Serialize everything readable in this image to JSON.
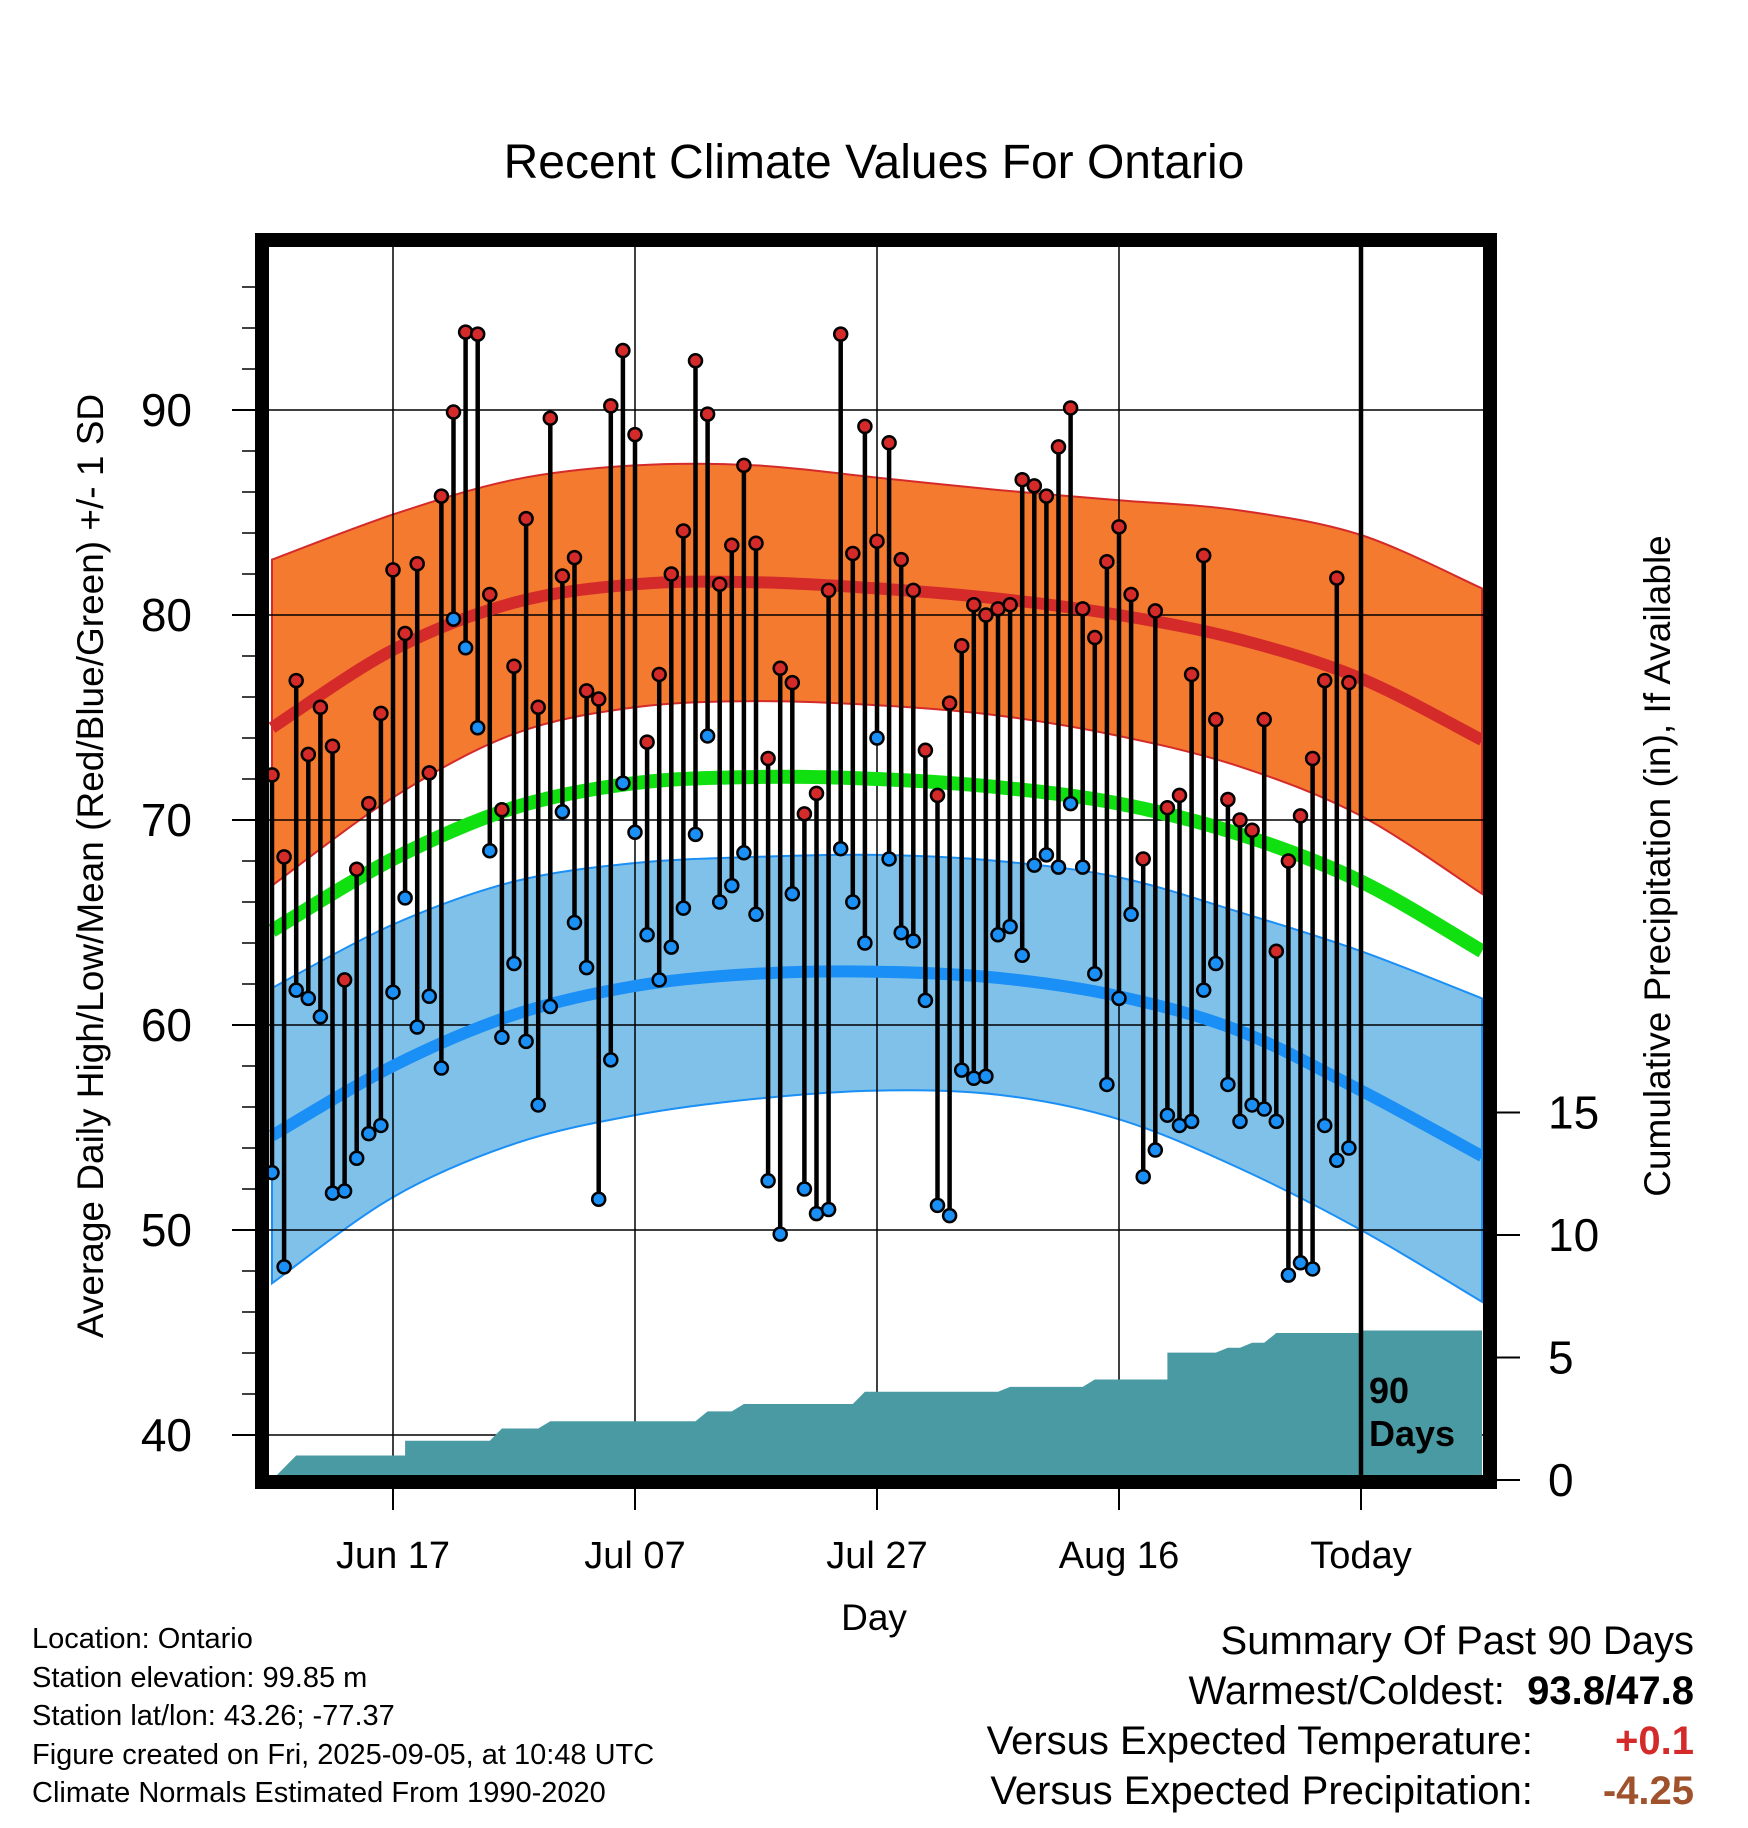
{
  "chart_data": {
    "type": "line",
    "title": "Recent Climate Values For Ontario",
    "xlabel": "Day",
    "ylabel": "Average Daily High/Low/Mean (Red/Blue/Green) +/- 1 SD",
    "y2label": "Cumulative Precipitation (in), If Available",
    "ylim": [
      38,
      98
    ],
    "y2lim": [
      0,
      20
    ],
    "y_ticks": [
      40,
      50,
      60,
      70,
      80,
      90
    ],
    "y2_ticks": [
      0,
      5,
      10,
      15
    ],
    "x_day_range": [
      0,
      90
    ],
    "x_ticks": [
      {
        "day": 10,
        "label": "Jun 17"
      },
      {
        "day": 30,
        "label": "Jul 07"
      },
      {
        "day": 50,
        "label": "Jul 27"
      },
      {
        "day": 70,
        "label": "Aug 16"
      },
      {
        "day": 90,
        "label": "Today"
      }
    ],
    "today_day": 90,
    "window_label": [
      "90",
      "Days"
    ],
    "grid": true,
    "colors": {
      "high": "#d42a2a",
      "high_band": "#f47a30",
      "low": "#1a8ff5",
      "low_band": "#80c1ea",
      "mean": "#10e010",
      "precip": "#4a9aa4"
    },
    "normals": {
      "days": [
        0,
        10,
        20,
        30,
        40,
        50,
        60,
        70,
        80,
        90,
        100
      ],
      "high_mean": [
        74.5,
        78.3,
        80.6,
        81.5,
        81.6,
        81.3,
        80.8,
        80.0,
        78.8,
        76.9,
        73.9
      ],
      "high_upper": [
        82.7,
        84.9,
        86.6,
        87.3,
        87.3,
        86.7,
        86.1,
        85.6,
        85.1,
        83.9,
        81.3
      ],
      "high_lower": [
        66.8,
        71.1,
        74.2,
        75.5,
        75.8,
        75.6,
        75.1,
        74.1,
        72.6,
        70.2,
        66.4
      ],
      "mean_mean": [
        64.6,
        68.1,
        70.6,
        71.8,
        72.1,
        72.0,
        71.6,
        70.8,
        69.3,
        67.0,
        63.6
      ],
      "low_mean": [
        54.6,
        58.0,
        60.5,
        61.9,
        62.5,
        62.6,
        62.3,
        61.4,
        59.7,
        56.8,
        53.6
      ],
      "low_upper": [
        61.8,
        64.9,
        67.0,
        67.9,
        68.2,
        68.3,
        68.0,
        67.2,
        65.5,
        63.6,
        61.3
      ],
      "low_lower": [
        47.4,
        51.6,
        54.2,
        55.6,
        56.4,
        56.8,
        56.6,
        55.4,
        53.0,
        50.0,
        46.5
      ]
    },
    "series": [
      {
        "name": "High",
        "values": [
          72.2,
          68.2,
          76.8,
          73.2,
          75.5,
          73.6,
          62.2,
          67.6,
          70.8,
          75.2,
          82.2,
          79.1,
          82.5,
          72.3,
          85.8,
          89.9,
          93.8,
          93.7,
          81.0,
          70.5,
          77.5,
          84.7,
          75.5,
          89.6,
          81.9,
          82.8,
          76.3,
          75.9,
          90.2,
          92.9,
          88.8,
          73.8,
          77.1,
          82.0,
          84.1,
          92.4,
          89.8,
          81.5,
          83.4,
          87.3,
          83.5,
          73.0,
          77.4,
          76.7,
          70.3,
          71.3,
          81.2,
          93.7,
          83.0,
          89.2,
          83.6,
          88.4,
          82.7,
          81.2,
          73.4,
          71.2,
          75.7,
          78.5,
          80.5,
          80.0,
          80.3,
          80.5,
          86.6,
          86.3,
          85.8,
          88.2,
          90.1,
          80.3,
          78.9,
          82.6,
          84.3,
          81.0,
          68.1,
          80.2,
          70.6,
          71.2,
          77.1,
          82.9,
          74.9,
          71.0,
          70.0,
          69.5,
          74.9,
          63.6,
          68.0,
          70.2,
          73.0,
          76.8,
          81.8,
          76.7
        ]
      },
      {
        "name": "Low",
        "values": [
          52.8,
          48.2,
          61.7,
          61.3,
          60.4,
          51.8,
          51.9,
          53.5,
          54.7,
          55.1,
          61.6,
          66.2,
          59.9,
          61.4,
          57.9,
          79.8,
          78.4,
          74.5,
          68.5,
          59.4,
          63.0,
          59.2,
          56.1,
          60.9,
          70.4,
          65.0,
          62.8,
          51.5,
          58.3,
          71.8,
          69.4,
          64.4,
          62.2,
          63.8,
          65.7,
          69.3,
          74.1,
          66.0,
          66.8,
          68.4,
          65.4,
          52.4,
          49.8,
          66.4,
          52.0,
          50.8,
          51.0,
          68.6,
          66.0,
          64.0,
          74.0,
          68.1,
          64.5,
          64.1,
          61.2,
          51.2,
          50.7,
          57.8,
          57.4,
          57.5,
          64.4,
          64.8,
          63.4,
          67.8,
          68.3,
          67.7,
          70.8,
          67.7,
          62.5,
          57.1,
          61.3,
          65.4,
          52.6,
          53.9,
          55.6,
          55.1,
          55.3,
          61.7,
          63.0,
          57.1,
          55.3,
          56.1,
          55.9,
          55.3,
          47.8,
          48.4,
          48.1,
          55.1,
          53.4,
          54.0
        ]
      }
    ],
    "precip": {
      "steps": [
        [
          0,
          0.0
        ],
        [
          2,
          1.0
        ],
        [
          11,
          1.0
        ],
        [
          11,
          1.6
        ],
        [
          18,
          1.6
        ],
        [
          19,
          2.1
        ],
        [
          22,
          2.1
        ],
        [
          23,
          2.4
        ],
        [
          35,
          2.4
        ],
        [
          36,
          2.8
        ],
        [
          38,
          2.8
        ],
        [
          39,
          3.1
        ],
        [
          48,
          3.1
        ],
        [
          49,
          3.6
        ],
        [
          60,
          3.6
        ],
        [
          61,
          3.8
        ],
        [
          67,
          3.8
        ],
        [
          68,
          4.1
        ],
        [
          74,
          4.1
        ],
        [
          74,
          5.2
        ],
        [
          78,
          5.2
        ],
        [
          79,
          5.4
        ],
        [
          80,
          5.4
        ],
        [
          81,
          5.6
        ],
        [
          82,
          5.6
        ],
        [
          83,
          6.0
        ],
        [
          90,
          6.0
        ],
        [
          90,
          6.1
        ],
        [
          100,
          6.1
        ]
      ]
    }
  },
  "info": {
    "location": "Location: Ontario",
    "elevation": "Station elevation: 99.85 m",
    "latlon": "Station lat/lon: 43.26; -77.37",
    "created": "Figure created on Fri, 2025-09-05, at 10:48 UTC",
    "normals": "Climate Normals Estimated From 1990-2020"
  },
  "summary": {
    "title": "Summary Of Past 90 Days",
    "warmest_label": "Warmest/Coldest:",
    "warmest_value": "93.8",
    "coldest_value": "47.8",
    "temp_label": "Versus Expected Temperature:",
    "temp_value": "+0.1",
    "temp_color": "#d42a2a",
    "precip_label": "Versus Expected Precipitation:",
    "precip_value": "-4.25",
    "precip_color": "#a0522d"
  }
}
